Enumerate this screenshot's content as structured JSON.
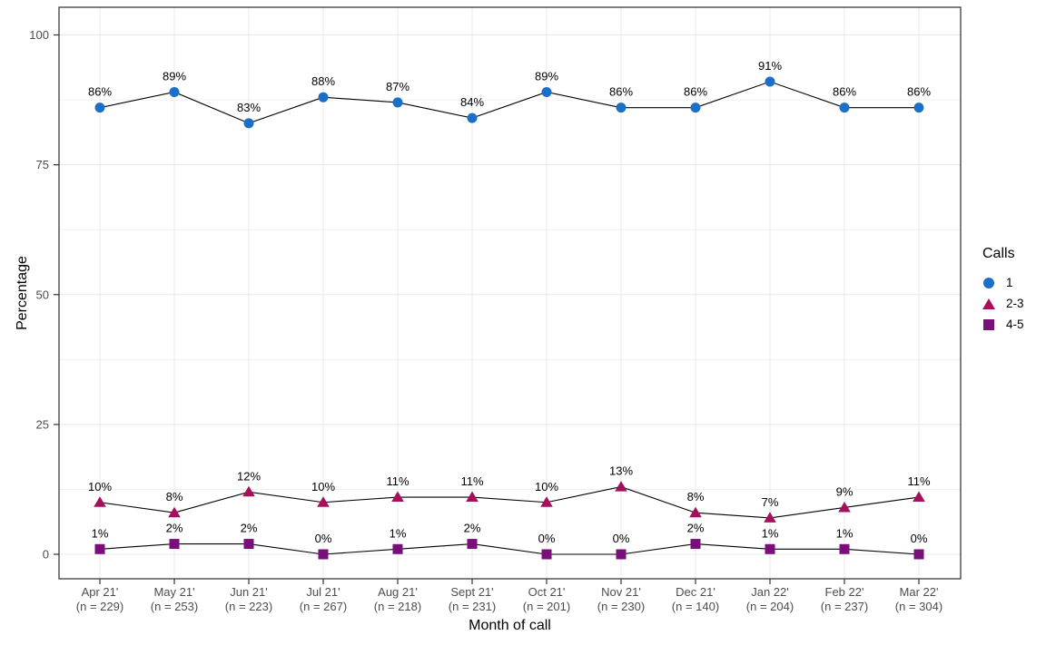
{
  "chart_data": {
    "type": "line",
    "title": "",
    "xlabel": "Month of call",
    "ylabel": "Percentage",
    "legend_title": "Calls",
    "legend_position": "right",
    "grid": true,
    "ylim": [
      0,
      100
    ],
    "yticks": [
      0,
      25,
      50,
      75,
      100
    ],
    "x_ticks": [
      {
        "month": "Apr 21'",
        "n_label": "(n = 229)"
      },
      {
        "month": "May 21'",
        "n_label": "(n = 253)"
      },
      {
        "month": "Jun 21'",
        "n_label": "(n = 223)"
      },
      {
        "month": "Jul 21'",
        "n_label": "(n = 267)"
      },
      {
        "month": "Aug 21'",
        "n_label": "(n = 218)"
      },
      {
        "month": "Sept 21'",
        "n_label": "(n = 231)"
      },
      {
        "month": "Oct 21'",
        "n_label": "(n = 201)"
      },
      {
        "month": "Nov 21'",
        "n_label": "(n = 230)"
      },
      {
        "month": "Dec 21'",
        "n_label": "(n = 140)"
      },
      {
        "month": "Jan 22'",
        "n_label": "(n = 204)"
      },
      {
        "month": "Feb 22'",
        "n_label": "(n = 237)"
      },
      {
        "month": "Mar 22'",
        "n_label": "(n = 304)"
      }
    ],
    "sample_sizes": [
      229,
      253,
      223,
      267,
      218,
      231,
      201,
      230,
      140,
      204,
      237,
      304
    ],
    "series": [
      {
        "name": "1",
        "marker": "circle",
        "color": "#1a70c8",
        "values": [
          86,
          89,
          83,
          88,
          87,
          84,
          89,
          86,
          86,
          91,
          86,
          86
        ],
        "labels": [
          "86%",
          "89%",
          "83%",
          "88%",
          "87%",
          "84%",
          "89%",
          "86%",
          "86%",
          "91%",
          "86%",
          "86%"
        ]
      },
      {
        "name": "2-3",
        "marker": "triangle",
        "color": "#a50f5c",
        "values": [
          10,
          8,
          12,
          10,
          11,
          11,
          10,
          13,
          8,
          7,
          9,
          11
        ],
        "labels": [
          "10%",
          "8%",
          "12%",
          "10%",
          "11%",
          "11%",
          "10%",
          "13%",
          "8%",
          "7%",
          "9%",
          "11%"
        ]
      },
      {
        "name": "4-5",
        "marker": "square",
        "color": "#7a0e7a",
        "values": [
          1,
          2,
          2,
          0,
          1,
          2,
          0,
          0,
          2,
          1,
          1,
          0
        ],
        "labels": [
          "1%",
          "2%",
          "2%",
          "0%",
          "1%",
          "2%",
          "0%",
          "0%",
          "2%",
          "1%",
          "1%",
          "0%"
        ]
      }
    ]
  },
  "colors": {
    "grid_major": "#e8e8e8",
    "grid_minor": "#f0f0f0",
    "axis_text": "#4d4d4d",
    "axis_tick": "#333333",
    "panel_border": "#2b2b2b",
    "series_line": "#000000",
    "data_label": "#000000",
    "background": "#ffffff"
  }
}
